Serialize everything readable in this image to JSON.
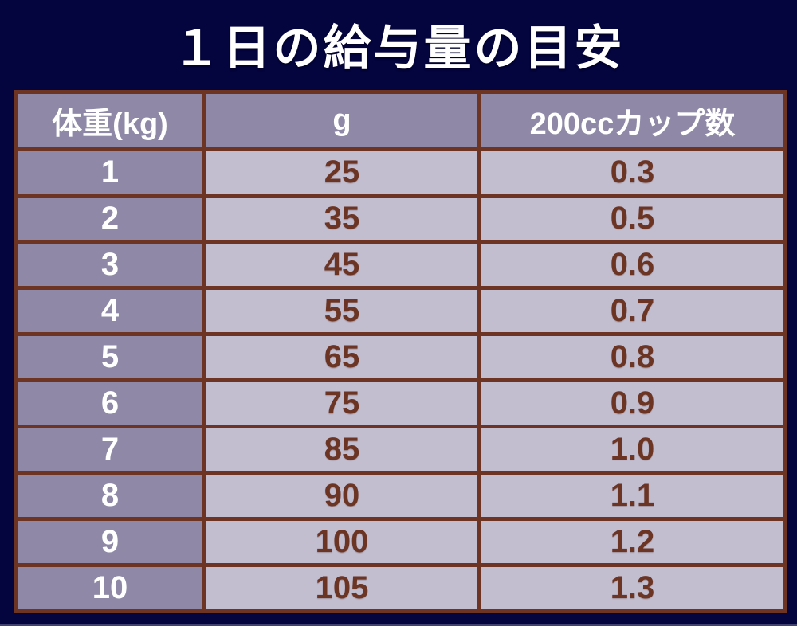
{
  "title": "１日の給与量の目安",
  "chart_data": {
    "type": "table",
    "title": "１日の給与量の目安",
    "columns": [
      "体重(kg)",
      "g",
      "200ccカップ数"
    ],
    "rows": [
      [
        "1",
        "25",
        "0.3"
      ],
      [
        "2",
        "35",
        "0.5"
      ],
      [
        "3",
        "45",
        "0.6"
      ],
      [
        "4",
        "55",
        "0.7"
      ],
      [
        "5",
        "65",
        "0.8"
      ],
      [
        "6",
        "75",
        "0.9"
      ],
      [
        "7",
        "85",
        "1.0"
      ],
      [
        "8",
        "90",
        "1.1"
      ],
      [
        "9",
        "100",
        "1.2"
      ],
      [
        "10",
        "105",
        "1.3"
      ]
    ]
  },
  "colors": {
    "background": "#04043e",
    "table_border": "#6e3423",
    "header_bg": "#8f89a7",
    "weight_column_bg": "#8f89a7",
    "value_cell_bg": "#c2bed0",
    "header_text": "#ffffff",
    "weight_text": "#ffffff",
    "value_text": "#6b3423",
    "title_text": "#ffffff"
  }
}
